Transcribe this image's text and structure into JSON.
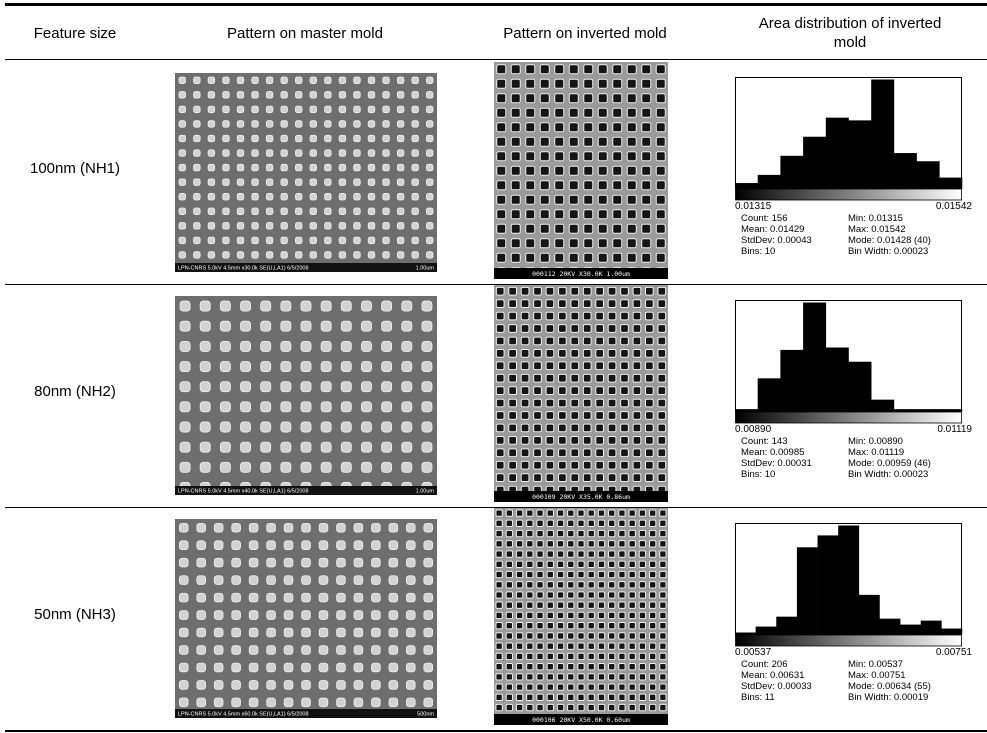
{
  "header": [
    "Feature size",
    "Pattern on master mold",
    "Pattern on inverted mold",
    "Area distribution of inverted mold"
  ],
  "rows": [
    {
      "feature": "100nm (NH1)",
      "master": {
        "caption": "LPN-CNRS 5.0kV 4.5mm x30.0k SE(U,LA1) 6/5/2008",
        "scale": "1.00um"
      },
      "inverted": {
        "caption": "000112 20KV X30.0K 1.00um"
      },
      "histogram": {
        "min_label": "0.01315",
        "max_label": "0.01542",
        "counts": [
          2,
          5,
          12,
          19,
          26,
          25,
          40,
          13,
          10,
          4
        ],
        "stats": [
          "Count: 156",
          "Min: 0.01315",
          "Mean: 0.01429",
          "Max: 0.01542",
          "StdDev: 0.00043",
          "Mode: 0.01428 (40)",
          "Bins: 10",
          "Bin Width: 0.00023"
        ]
      }
    },
    {
      "feature": "80nm (NH2)",
      "master": {
        "caption": "LPN-CNRS 5.0kV 4.5mm x40.0k SE(U,LA1) 6/5/2008",
        "scale": "1.00um"
      },
      "inverted": {
        "caption": "000109 20KV X35.0K 0.86um"
      },
      "histogram": {
        "min_label": "0.00890",
        "max_label": "0.01119",
        "counts": [
          1,
          14,
          26,
          46,
          27,
          21,
          5,
          1,
          1,
          1
        ],
        "stats": [
          "Count: 143",
          "Min: 0.00890",
          "Mean: 0.00985",
          "Max: 0.01119",
          "StdDev: 0.00031",
          "Mode: 0.00959 (46)",
          "Bins: 10",
          "Bin Width: 0.00023"
        ]
      }
    },
    {
      "feature": "50nm (NH3)",
      "master": {
        "caption": "LPN-CNRS 5.0kV 4.5mm x60.0k SE(U,LA1) 6/5/2008",
        "scale": "500nm"
      },
      "inverted": {
        "caption": "000106 20KV X50.0K 0.60um"
      },
      "histogram": {
        "min_label": "0.00537",
        "max_label": "0.00751",
        "counts": [
          1,
          4,
          9,
          44,
          50,
          55,
          20,
          8,
          5,
          7,
          3
        ],
        "stats": [
          "Count: 206",
          "Min: 0.00537",
          "Mean: 0.00631",
          "Max: 0.00751",
          "StdDev: 0.00033",
          "Mode: 0.00634 (55)",
          "Bins: 11",
          "Bin Width: 0.00019"
        ]
      }
    }
  ]
}
